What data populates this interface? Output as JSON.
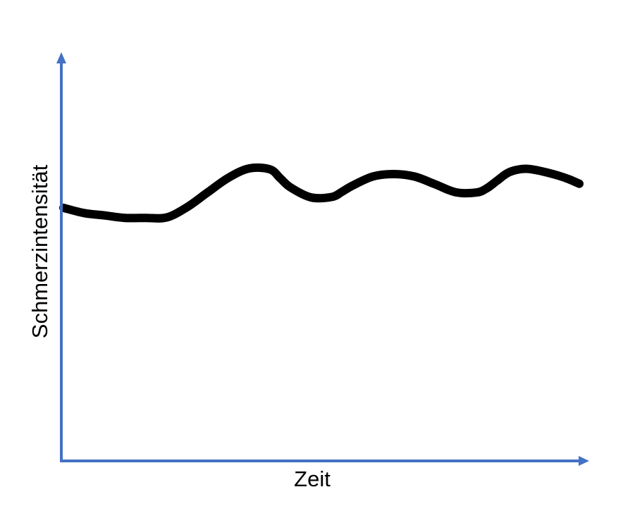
{
  "chart_data": {
    "type": "line",
    "title": "",
    "xlabel": "Zeit",
    "ylabel": "Schmerzintensität",
    "xlim": [
      0,
      100
    ],
    "ylim": [
      0,
      100
    ],
    "grid": false,
    "legend": "none",
    "ticks": false,
    "series": [
      {
        "x": [
          0,
          4,
          8,
          12,
          16,
          20,
          24,
          28,
          32,
          36,
          40,
          42,
          44,
          48,
          52,
          54,
          56,
          60,
          64,
          68,
          72,
          76,
          80,
          82,
          84,
          86,
          88,
          90,
          92,
          94,
          96,
          98,
          100
        ],
        "values": [
          63,
          61.7,
          61.1,
          60.5,
          60.5,
          60.6,
          63.2,
          66.9,
          70.5,
          72.8,
          72.6,
          70.4,
          68.1,
          65.6,
          65.7,
          67,
          68.5,
          70.8,
          71.4,
          70.8,
          68.9,
          66.9,
          66.8,
          67.8,
          69.7,
          71.6,
          72.5,
          72.7,
          72.3,
          71.7,
          71,
          70.1,
          69
        ]
      }
    ]
  },
  "colors": {
    "axis": "#4472c4",
    "line": "#000000",
    "text": "#000000"
  }
}
